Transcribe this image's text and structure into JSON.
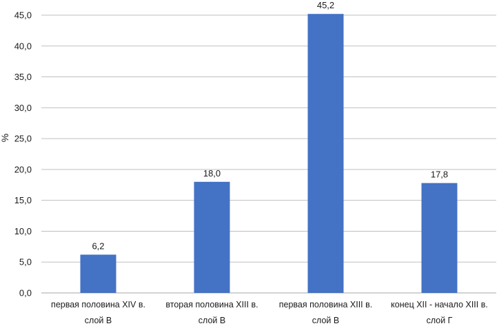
{
  "chart_data": {
    "type": "bar",
    "title": "",
    "xlabel": "",
    "ylabel": "%",
    "ylim": [
      0,
      45
    ],
    "yticks": [
      "0,0",
      "5,0",
      "10,0",
      "15,0",
      "20,0",
      "25,0",
      "30,0",
      "35,0",
      "40,0",
      "45,0"
    ],
    "grid": true,
    "categories": [
      {
        "line1": "первая половина XIV в.",
        "line2": "слой В"
      },
      {
        "line1": "вторая половина XIII в.",
        "line2": "слой В"
      },
      {
        "line1": "первая половина XIII в.",
        "line2": "слой В"
      },
      {
        "line1": "конец XII - начало XIII в.",
        "line2": "слой Г"
      }
    ],
    "values": [
      6.2,
      18.0,
      45.2,
      17.8
    ],
    "value_labels": [
      "6,2",
      "18,0",
      "45,2",
      "17,8"
    ],
    "colors": {
      "bar": "#4472c4",
      "grid": "#bfbfbf",
      "axis": "#a6a6a6"
    }
  }
}
